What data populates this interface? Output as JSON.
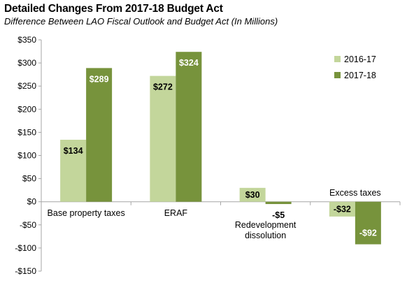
{
  "title": "Detailed Changes From 2017-18 Budget Act",
  "subtitle": "Difference Between LAO Fiscal Outlook and Budget Act (In Millions)",
  "colors": {
    "series1": "#c3d69b",
    "series2": "#77933c",
    "axis": "#a6a6a6"
  },
  "chart_data": {
    "type": "bar",
    "title": "Detailed Changes From 2017-18 Budget Act",
    "subtitle": "Difference Between LAO Fiscal Outlook and Budget Act (In Millions)",
    "categories": [
      "Base property taxes",
      "ERAF",
      "Redevelopment dissolution",
      "Excess taxes"
    ],
    "series": [
      {
        "name": "2016-17",
        "values": [
          134,
          272,
          30,
          -32
        ],
        "labels": [
          "$134",
          "$272",
          "$30",
          "-$32"
        ]
      },
      {
        "name": "2017-18",
        "values": [
          289,
          324,
          -5,
          -92
        ],
        "labels": [
          "$289",
          "$324",
          "-$5",
          "-$92"
        ]
      }
    ],
    "ylim": [
      -150,
      350
    ],
    "yticks": [
      350,
      300,
      250,
      200,
      150,
      100,
      50,
      0,
      -50,
      -100,
      -150
    ],
    "ytick_labels": [
      "$350",
      "$300",
      "$250",
      "$200",
      "$150",
      "$100",
      "$50",
      "$0",
      "-$50",
      "-$100",
      "-$150"
    ],
    "xlabel": "",
    "ylabel": "",
    "grid": false,
    "legend_position": "top-right"
  }
}
